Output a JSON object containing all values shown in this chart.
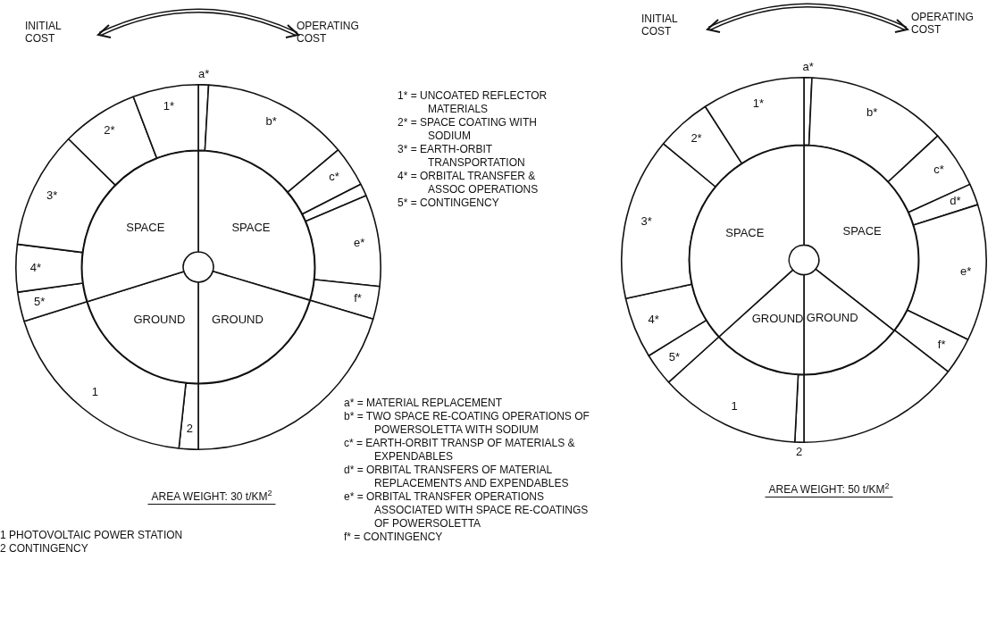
{
  "chart_data": [
    {
      "type": "donut",
      "categories": [
        "a*",
        "b*",
        "c*",
        null,
        "e*",
        "f*",
        null,
        "2",
        "1",
        "5*",
        "4*",
        "3*",
        "2*",
        "1*"
      ],
      "values": [
        0.9,
        13.0,
        3.6,
        1.1,
        8.1,
        2.9,
        20.4,
        1.7,
        18.5,
        2.6,
        4.2,
        10.4,
        6.8,
        5.8
      ],
      "colors": [
        "#ffffff",
        "#ffffff",
        "#ffffff",
        "#ffffff",
        "#ffffff",
        "#ffffff",
        "#ffffff",
        "#ffffff",
        "#ffffff",
        "#ffffff",
        "#ffffff",
        "#ffffff",
        "#ffffff",
        "#ffffff"
      ],
      "annotations": [
        "INITIAL COST",
        "OPERATING COST",
        "AREA WEIGHT:  30 t/KM$^{2}$",
        "1* = UNCOATED REFLECTOR MATERIALS",
        "2* = SPACE COATING WITH SODIUM",
        "3* = EARTH-ORBIT TRANSPORTATION",
        "4* = ORBITAL TRANSFER & ASSOC OPERATIONS",
        "5* = CONTINGENCY",
        "a* = MATERIAL REPLACEMENT",
        "b* = TWO SPACE RE-COATING OPERATIONS OF POWERSOLETTA WITH SODIUM",
        "c* = EARTH-ORBIT TRANSP OF MATERIALS & EXPENDABLES",
        "d* = ORBITAL TRANSFERS OF MATERIAL REPLACEMENTS AND EXPENDABLES",
        "e* = ORBITAL TRANSFER OPERATIONS ASSOCIATED WITH SPACE RE-COATINGS OF POWERSOLETTA",
        "f* = CONTINGENCY",
        "1 PHOTOVOLTAIC POWER STATION",
        "2 CONTINGENCY"
      ]
    },
    {
      "type": "donut",
      "categories": [
        "SPACE",
        "GROUND",
        "GROUND",
        "SPACE"
      ],
      "values": [
        29.6,
        20.4,
        20.2,
        29.8
      ],
      "colors": [
        "#ffffff",
        "#ffffff",
        "#ffffff",
        "#ffffff"
      ]
    },
    {
      "type": "donut",
      "categories": [
        "a*",
        "b*",
        "c*",
        "d*",
        "e*",
        "f*",
        null,
        "2",
        "1",
        "5*",
        "4*",
        "3*",
        "2*",
        "1*"
      ],
      "values": [
        0.7,
        12.4,
        5.1,
        1.9,
        12.1,
        3.3,
        14.5,
        0.8,
        12.5,
        2.9,
        5.4,
        14.4,
        4.9,
        9.1
      ],
      "colors": [
        "#ffffff",
        "#ffffff",
        "#ffffff",
        "#ffffff",
        "#ffffff",
        "#ffffff",
        "#ffffff",
        "#ffffff",
        "#ffffff",
        "#ffffff",
        "#ffffff",
        "#ffffff",
        "#ffffff",
        "#ffffff"
      ],
      "annotations": [
        "INITIAL COST",
        "OPERATING COST",
        "AREA WEIGHT:  50 t/KM$^{2}$"
      ]
    },
    {
      "type": "donut",
      "categories": [
        "SPACE",
        "GROUND",
        "GROUND",
        "SPACE"
      ],
      "values": [
        35.6,
        14.4,
        13.3,
        36.7
      ],
      "colors": [
        "#ffffff",
        "#ffffff",
        "#ffffff",
        "#ffffff"
      ]
    }
  ]
}
